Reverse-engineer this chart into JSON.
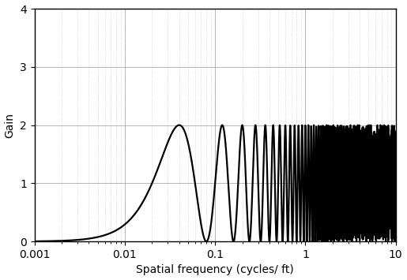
{
  "title": "",
  "xlabel": "Spatial frequency (cycles/ ft)",
  "ylabel": "Gain",
  "xlim": [
    0.001,
    10
  ],
  "ylim": [
    0,
    4
  ],
  "yticks": [
    0,
    1,
    2,
    3,
    4
  ],
  "xtick_labels": [
    "0.001",
    "0.01",
    "0.1",
    "1",
    "10"
  ],
  "line_color": "#000000",
  "line_width": 1.6,
  "bg_color": "#ffffff",
  "grid_major_color": "#888888",
  "grid_minor_color": "#bbbbbb",
  "grid_major_style": "-",
  "grid_minor_style": ":"
}
